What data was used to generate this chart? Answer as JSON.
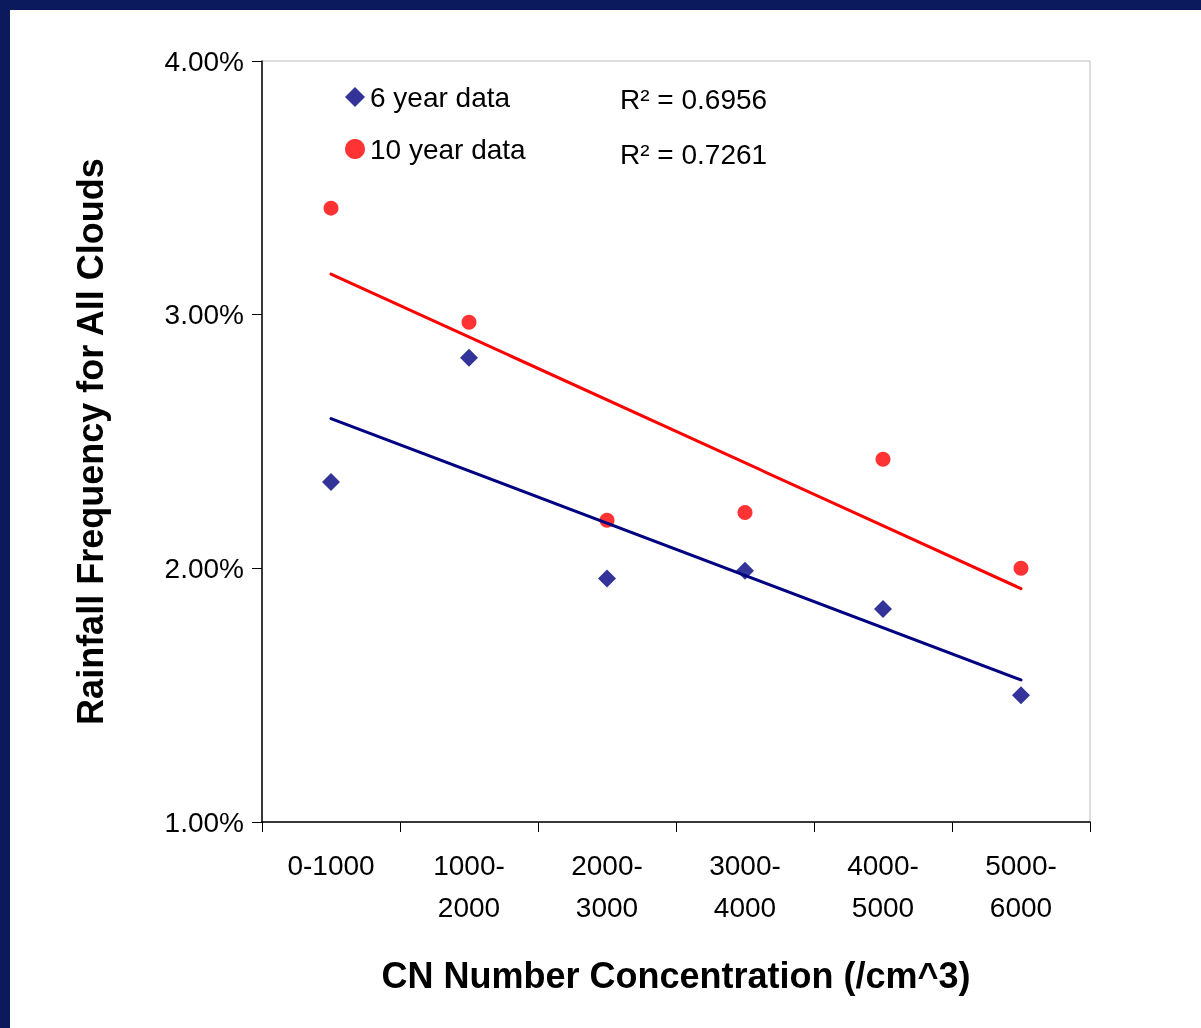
{
  "chart_data": {
    "type": "scatter",
    "xlabel": "CN Number Concentration (/cm^3)",
    "ylabel": "Rainfall Frequency for All Clouds",
    "categories": [
      "0-1000",
      "1000-\n2000",
      "2000-\n3000",
      "3000-\n4000",
      "4000-\n5000",
      "5000-\n6000"
    ],
    "series": [
      {
        "name": "6 year data",
        "color": "#000080",
        "marker": "diamond",
        "values": [
          2.34,
          2.83,
          1.96,
          1.99,
          1.84,
          1.5
        ]
      },
      {
        "name": "10 year data",
        "color": "#ff0000",
        "marker": "circle",
        "values": [
          3.42,
          2.97,
          2.19,
          2.22,
          2.43,
          2.0
        ]
      },
      {
        "type": "line",
        "color": "#000080",
        "marker": "none",
        "line_style": "solid",
        "x": [
          "0-1000",
          "5000-\n6000"
        ],
        "values": [
          2.59,
          1.56
        ]
      },
      {
        "type": "line",
        "color": "#ff0000",
        "marker": "none",
        "line_style": "solid",
        "x": [
          "0-1000",
          "5000-\n6000"
        ],
        "values": [
          3.16,
          1.92
        ]
      }
    ],
    "ylim": [
      1,
      4
    ],
    "yticks": [
      {
        "value": 1,
        "label": "1.00%"
      },
      {
        "value": 2,
        "label": "2.00%"
      },
      {
        "value": 3,
        "label": "3.00%"
      },
      {
        "value": 4,
        "label": "4.00%"
      }
    ],
    "grid": false,
    "legend": "top left",
    "annotations": [
      "R² = 0.6956",
      "R² = 0.7261"
    ]
  }
}
